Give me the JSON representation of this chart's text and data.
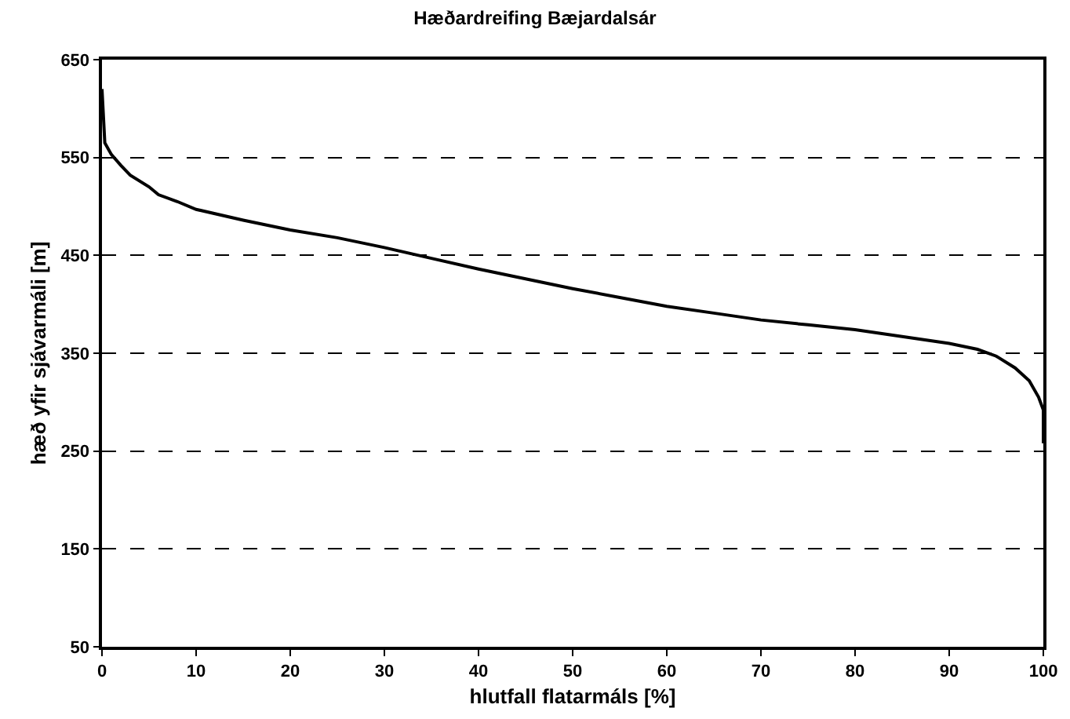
{
  "chart_data": {
    "type": "line",
    "title": "Hæðardreifing Bæjardalsár",
    "xlabel": "hlutfall flatarmáls [%]",
    "ylabel": "hæð yfir sjávarmáli [m]",
    "series": [
      {
        "color": "#000000",
        "x": [
          0,
          0.3,
          1,
          2,
          3,
          5,
          6,
          8,
          10,
          15,
          20,
          25,
          30,
          35,
          40,
          45,
          50,
          55,
          60,
          65,
          70,
          75,
          80,
          85,
          90,
          93,
          95,
          97,
          98.5,
          99.5,
          100,
          100
        ],
        "values": [
          620,
          565,
          553,
          542,
          532,
          520,
          512,
          505,
          497,
          486,
          476,
          468,
          458,
          447,
          436,
          426,
          416,
          407,
          398,
          391,
          384,
          379,
          374,
          367,
          360,
          354,
          347,
          335,
          322,
          305,
          292,
          258
        ]
      }
    ],
    "xlim": [
      0,
      100
    ],
    "xticks": [
      0,
      10,
      20,
      30,
      40,
      50,
      60,
      70,
      80,
      90,
      100
    ],
    "ylim": [
      50,
      650
    ],
    "yticks": [
      50,
      150,
      250,
      350,
      450,
      550,
      650
    ],
    "grid": "y",
    "line_style": "solid",
    "marker": "none"
  }
}
